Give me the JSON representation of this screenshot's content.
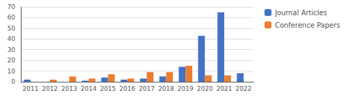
{
  "chart_data": {
    "type": "bar",
    "categories": [
      "2011",
      "2012",
      "2013",
      "2014",
      "2015",
      "2016",
      "2017",
      "2018",
      "2019",
      "2020",
      "2021",
      "2022"
    ],
    "series": [
      {
        "name": "Journal Articles",
        "color": "#4472C4",
        "values": [
          2,
          0,
          0,
          1,
          4,
          2,
          3,
          5,
          14,
          43,
          65,
          8
        ]
      },
      {
        "name": "Conference Papers",
        "color": "#ED7D31",
        "values": [
          0,
          2,
          5,
          3,
          7,
          3,
          9,
          9,
          15,
          6,
          6,
          0
        ]
      }
    ],
    "ylim": [
      0,
      70
    ],
    "yticks": [
      0,
      10,
      20,
      30,
      40,
      50,
      60,
      70
    ],
    "grid": true,
    "legend": "upper right"
  }
}
